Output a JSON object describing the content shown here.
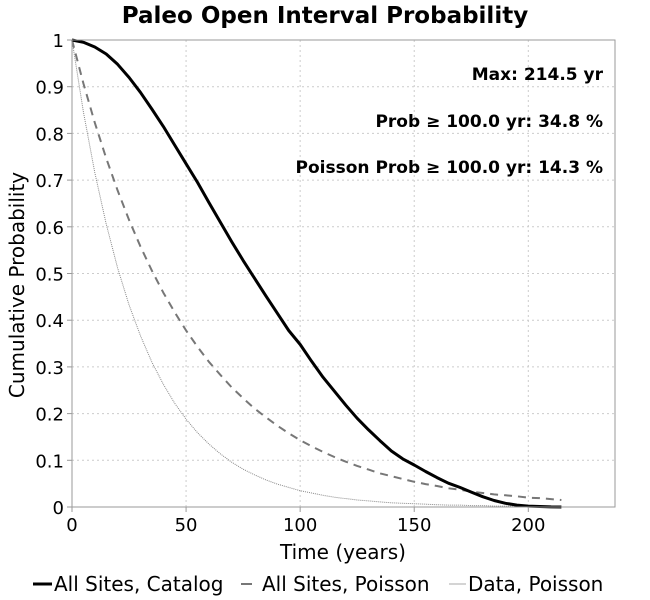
{
  "chart_data": {
    "type": "line",
    "title": "Paleo Open Interval Probability",
    "xlabel": "Time (years)",
    "ylabel": "Cumulative Probability",
    "xlim": [
      0,
      238
    ],
    "ylim": [
      0,
      1
    ],
    "x_ticks": [
      0,
      50,
      100,
      150,
      200
    ],
    "y_ticks": [
      0,
      0.1,
      0.2,
      0.3,
      0.4,
      0.5,
      0.6,
      0.7,
      0.8,
      0.9,
      1
    ],
    "grid": true,
    "legend_position": "bottom",
    "annotations": [
      "Max: 214.5 yr",
      "Prob ≥ 100.0 yr: 34.8 %",
      "Poisson Prob ≥ 100.0 yr: 14.3 %"
    ],
    "series": [
      {
        "name": "All Sites, Catalog",
        "color": "#000000",
        "style": "solid-thick",
        "x": [
          0,
          5,
          10,
          15,
          20,
          25,
          30,
          35,
          40,
          45,
          50,
          55,
          60,
          65,
          70,
          75,
          80,
          85,
          90,
          95,
          100,
          105,
          110,
          115,
          120,
          125,
          130,
          135,
          140,
          145,
          150,
          155,
          160,
          165,
          170,
          175,
          180,
          185,
          190,
          195,
          200,
          205,
          210,
          214.5
        ],
        "y": [
          1,
          0.995,
          0.985,
          0.97,
          0.948,
          0.92,
          0.888,
          0.852,
          0.815,
          0.775,
          0.735,
          0.695,
          0.652,
          0.61,
          0.568,
          0.528,
          0.49,
          0.452,
          0.415,
          0.378,
          0.348,
          0.312,
          0.278,
          0.248,
          0.218,
          0.19,
          0.165,
          0.142,
          0.12,
          0.103,
          0.09,
          0.076,
          0.063,
          0.051,
          0.042,
          0.032,
          0.022,
          0.014,
          0.008,
          0.004,
          0.002,
          0.001,
          0.0003,
          0
        ]
      },
      {
        "name": "All Sites, Poisson",
        "color": "#777777",
        "style": "dashed",
        "x": [
          0,
          5,
          10,
          15,
          20,
          25,
          30,
          35,
          40,
          45,
          50,
          55,
          60,
          65,
          70,
          75,
          80,
          85,
          90,
          95,
          100,
          105,
          110,
          115,
          120,
          125,
          130,
          135,
          140,
          145,
          150,
          155,
          160,
          165,
          170,
          175,
          180,
          185,
          190,
          195,
          200,
          205,
          210,
          214.5
        ],
        "y": [
          1,
          0.907,
          0.823,
          0.747,
          0.678,
          0.615,
          0.558,
          0.506,
          0.459,
          0.417,
          0.378,
          0.343,
          0.311,
          0.283,
          0.256,
          0.233,
          0.211,
          0.192,
          0.174,
          0.158,
          0.143,
          0.13,
          0.118,
          0.107,
          0.097,
          0.088,
          0.08,
          0.072,
          0.066,
          0.06,
          0.054,
          0.049,
          0.045,
          0.04,
          0.037,
          0.033,
          0.03,
          0.027,
          0.025,
          0.023,
          0.02,
          0.019,
          0.017,
          0.015
        ]
      },
      {
        "name": "Data, Poisson",
        "color": "#888888",
        "style": "dotted-thin",
        "x": [
          0,
          5,
          10,
          15,
          20,
          25,
          30,
          35,
          40,
          45,
          50,
          55,
          60,
          65,
          70,
          75,
          80,
          85,
          90,
          95,
          100,
          105,
          110,
          115,
          120,
          125,
          130,
          135,
          140,
          145,
          150,
          155,
          160,
          165,
          170,
          175,
          180,
          185,
          190,
          195,
          200,
          205,
          210,
          214.5
        ],
        "y": [
          1,
          0.846,
          0.716,
          0.606,
          0.512,
          0.433,
          0.367,
          0.31,
          0.263,
          0.222,
          0.188,
          0.159,
          0.135,
          0.114,
          0.096,
          0.081,
          0.069,
          0.058,
          0.049,
          0.042,
          0.035,
          0.03,
          0.025,
          0.021,
          0.018,
          0.015,
          0.013,
          0.011,
          0.009,
          0.008,
          0.007,
          0.006,
          0.005,
          0.004,
          0.004,
          0.003,
          0.003,
          0.002,
          0.002,
          0.002,
          0.001,
          0.001,
          0.001,
          0.001
        ]
      }
    ]
  }
}
